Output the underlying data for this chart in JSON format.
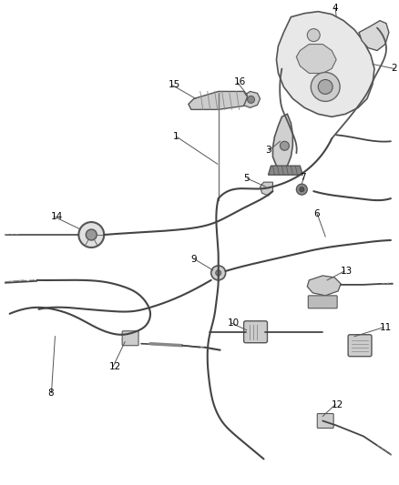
{
  "bg_color": "#ffffff",
  "line_color": "#333333",
  "fig_width": 4.38,
  "fig_height": 5.33,
  "dpi": 100,
  "label_fontsize": 7.5,
  "cable_color": "#444444",
  "part_color": "#bbbbbb",
  "part_edge": "#555555"
}
